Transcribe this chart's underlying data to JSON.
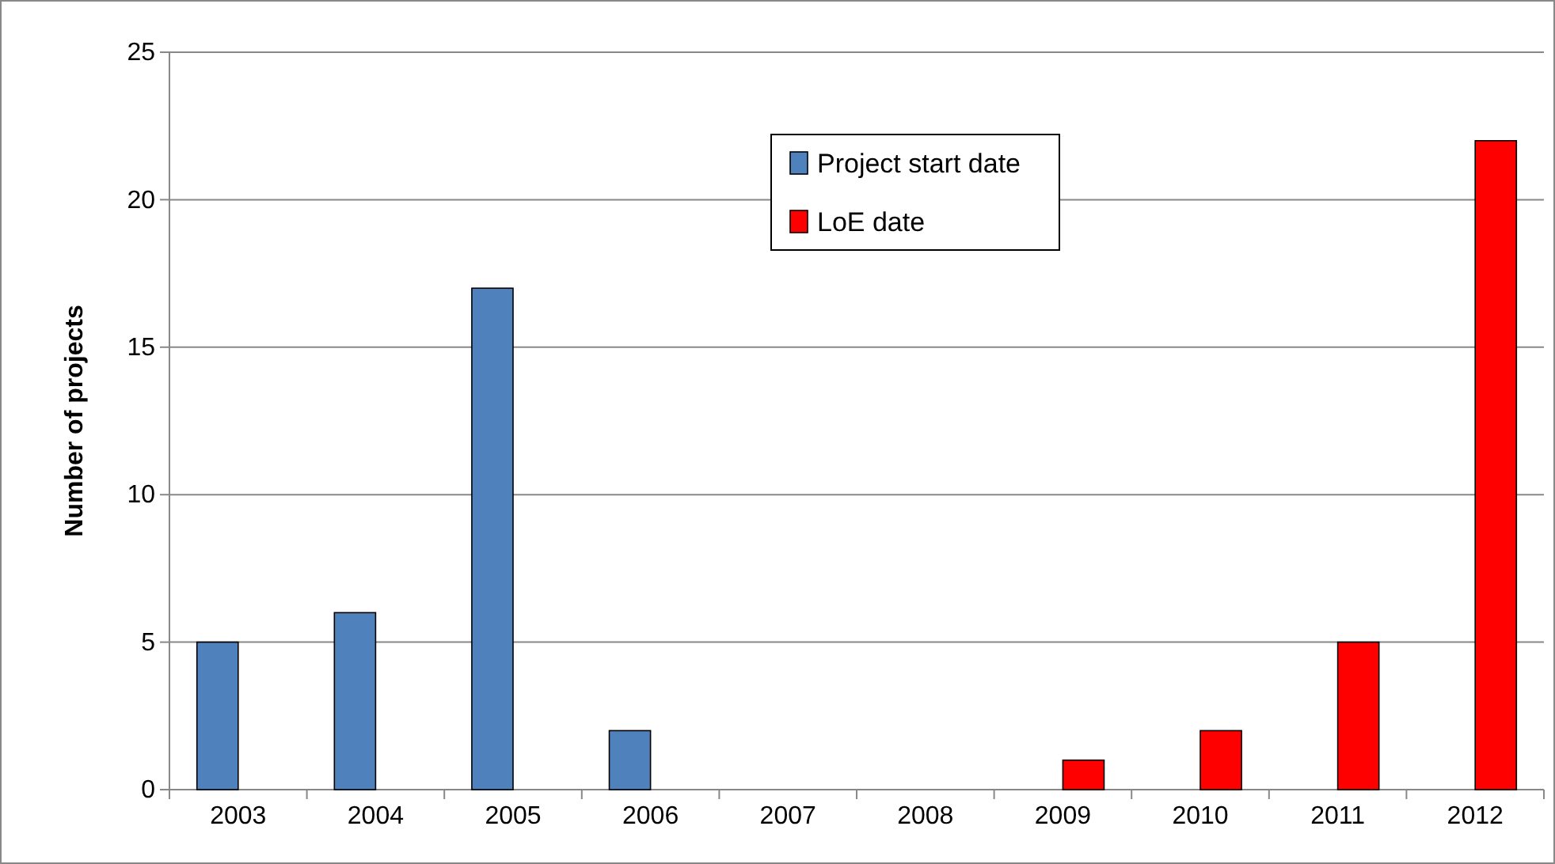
{
  "chart_data": {
    "type": "bar",
    "ylabel": "Number of projects",
    "categories": [
      "2003",
      "2004",
      "2005",
      "2006",
      "2007",
      "2008",
      "2009",
      "2010",
      "2011",
      "2012"
    ],
    "series": [
      {
        "name": "Project start date",
        "color": "#4f81bd",
        "values": [
          5,
          6,
          17,
          2,
          null,
          null,
          null,
          null,
          null,
          null
        ]
      },
      {
        "name": "LoE date",
        "color": "#ff0000",
        "values": [
          null,
          null,
          null,
          null,
          null,
          null,
          1,
          2,
          5,
          22
        ]
      }
    ],
    "ylim": [
      0,
      25
    ],
    "yticks": [
      0,
      5,
      10,
      15,
      20,
      25
    ],
    "grid": "y",
    "legend": "top"
  }
}
